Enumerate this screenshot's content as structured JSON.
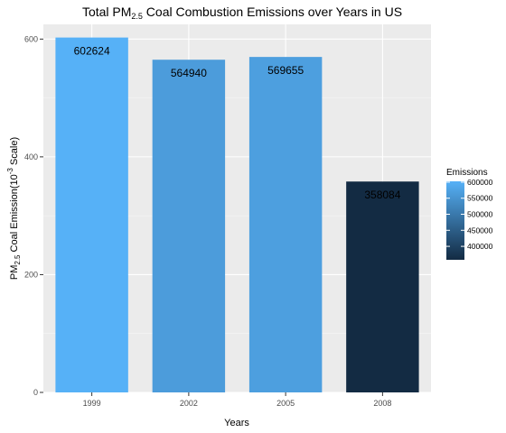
{
  "chart_data": {
    "type": "bar",
    "title": {
      "prefix": "Total PM",
      "subscript": "2.5",
      "suffix": " Coal Combustion Emissions over Years in US"
    },
    "xlabel": "Years",
    "ylabel": {
      "prefix": "PM",
      "subscript": "2.5",
      "middle": " Coal Emission(10",
      "superscript": "-3",
      "suffix": " Scale)"
    },
    "categories": [
      "1999",
      "2002",
      "2005",
      "2008"
    ],
    "values": [
      602.624,
      564.94,
      569.655,
      358.084
    ],
    "data_labels": [
      "602624",
      "564940",
      "569655",
      "358084"
    ],
    "fill_values": [
      602624,
      564940,
      569655,
      358084
    ],
    "ylim": [
      0,
      625
    ],
    "yticks": [
      0,
      200,
      400,
      600
    ],
    "ytick_labels": [
      "0",
      "200",
      "400",
      "600"
    ],
    "grid": true,
    "legend": {
      "title": "Emissions",
      "position": "right",
      "range": [
        358084,
        602624
      ],
      "ticks": [
        600000,
        550000,
        500000,
        450000,
        400000
      ],
      "tick_labels": [
        "600000",
        "550000",
        "500000",
        "450000",
        "400000"
      ],
      "color_low": "#132B43",
      "color_high": "#56B1F7"
    }
  }
}
